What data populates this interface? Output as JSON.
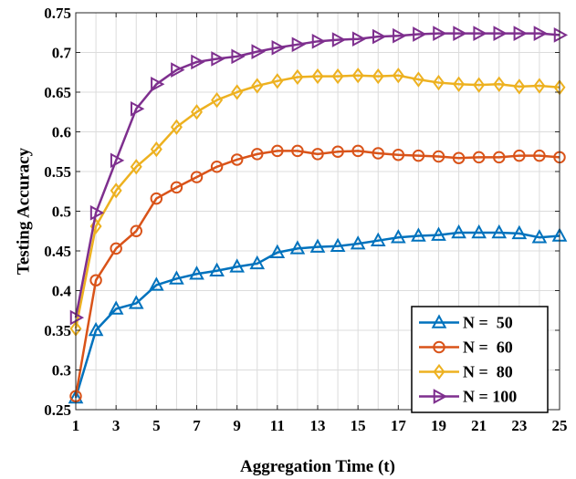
{
  "chart_data": {
    "type": "line",
    "title": "",
    "xlabel": "Aggregation Time (t)",
    "ylabel": "Testing Accuracy",
    "xlim": [
      1,
      25
    ],
    "ylim": [
      0.25,
      0.75
    ],
    "xticks": [
      1,
      3,
      5,
      7,
      9,
      11,
      13,
      15,
      17,
      19,
      21,
      23,
      25
    ],
    "xtick_labels": [
      "1",
      "3",
      "5",
      "7",
      "9",
      "11",
      "13",
      "15",
      "17",
      "19",
      "21",
      "23",
      "25"
    ],
    "yticks": [
      0.25,
      0.3,
      0.35,
      0.4,
      0.45,
      0.5,
      0.55,
      0.6,
      0.65,
      0.7,
      0.75
    ],
    "ytick_labels": [
      "0.25",
      "0.3",
      "0.35",
      "0.4",
      "0.45",
      "0.5",
      "0.55",
      "0.6",
      "0.65",
      "0.7",
      "0.75"
    ],
    "grid": true,
    "legend_position": "bottom-right",
    "x": [
      1,
      2,
      3,
      4,
      5,
      6,
      7,
      8,
      9,
      10,
      11,
      12,
      13,
      14,
      15,
      16,
      17,
      18,
      19,
      20,
      21,
      22,
      23,
      24,
      25
    ],
    "series": [
      {
        "name": "N =  50",
        "color": "#0072BD",
        "marker": "triangle-up",
        "values": [
          0.265,
          0.35,
          0.377,
          0.384,
          0.407,
          0.415,
          0.421,
          0.425,
          0.43,
          0.434,
          0.448,
          0.453,
          0.455,
          0.456,
          0.459,
          0.463,
          0.467,
          0.469,
          0.47,
          0.473,
          0.473,
          0.473,
          0.472,
          0.467,
          0.469
        ]
      },
      {
        "name": "N =  60",
        "color": "#D95319",
        "marker": "circle",
        "values": [
          0.267,
          0.413,
          0.453,
          0.475,
          0.516,
          0.53,
          0.543,
          0.556,
          0.565,
          0.572,
          0.576,
          0.576,
          0.572,
          0.575,
          0.576,
          0.573,
          0.571,
          0.57,
          0.569,
          0.567,
          0.568,
          0.568,
          0.57,
          0.57,
          0.568
        ]
      },
      {
        "name": "N =  80",
        "color": "#EDB120",
        "marker": "diamond",
        "values": [
          0.352,
          0.481,
          0.526,
          0.556,
          0.578,
          0.606,
          0.625,
          0.64,
          0.65,
          0.658,
          0.664,
          0.669,
          0.67,
          0.67,
          0.671,
          0.67,
          0.671,
          0.666,
          0.662,
          0.66,
          0.659,
          0.66,
          0.657,
          0.658,
          0.656
        ]
      },
      {
        "name": "N = 100",
        "color": "#7E2F8E",
        "marker": "triangle-right",
        "values": [
          0.366,
          0.498,
          0.564,
          0.629,
          0.66,
          0.678,
          0.688,
          0.692,
          0.695,
          0.701,
          0.706,
          0.71,
          0.714,
          0.716,
          0.717,
          0.72,
          0.721,
          0.723,
          0.724,
          0.724,
          0.724,
          0.724,
          0.724,
          0.724,
          0.722
        ]
      }
    ]
  }
}
